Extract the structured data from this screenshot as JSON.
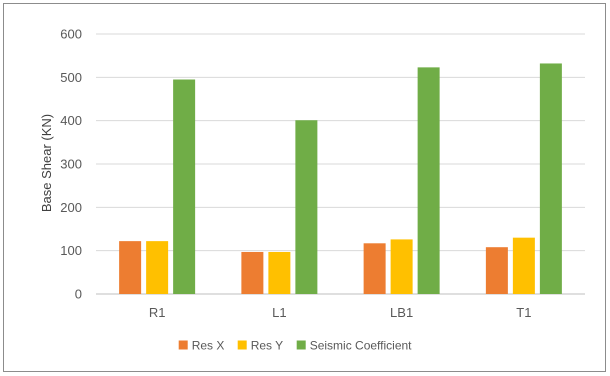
{
  "chart_data": {
    "type": "bar",
    "title": "",
    "xlabel": "",
    "ylabel": "Base Shear (KN)",
    "categories": [
      "R1",
      "L1",
      "LB1",
      "T1"
    ],
    "series": [
      {
        "name": "Res X",
        "color": "#ed7d31",
        "values": [
          122,
          97,
          117,
          108
        ]
      },
      {
        "name": "Res Y",
        "color": "#ffc000",
        "values": [
          122,
          97,
          126,
          130
        ]
      },
      {
        "name": "Seismic Coefficient",
        "color": "#70ad47",
        "values": [
          495,
          401,
          523,
          532
        ]
      }
    ],
    "ylim": [
      0,
      600
    ],
    "yticks": [
      "0",
      "100",
      "200",
      "300",
      "400",
      "500",
      "600"
    ],
    "grid": true,
    "legend_position": "bottom"
  }
}
